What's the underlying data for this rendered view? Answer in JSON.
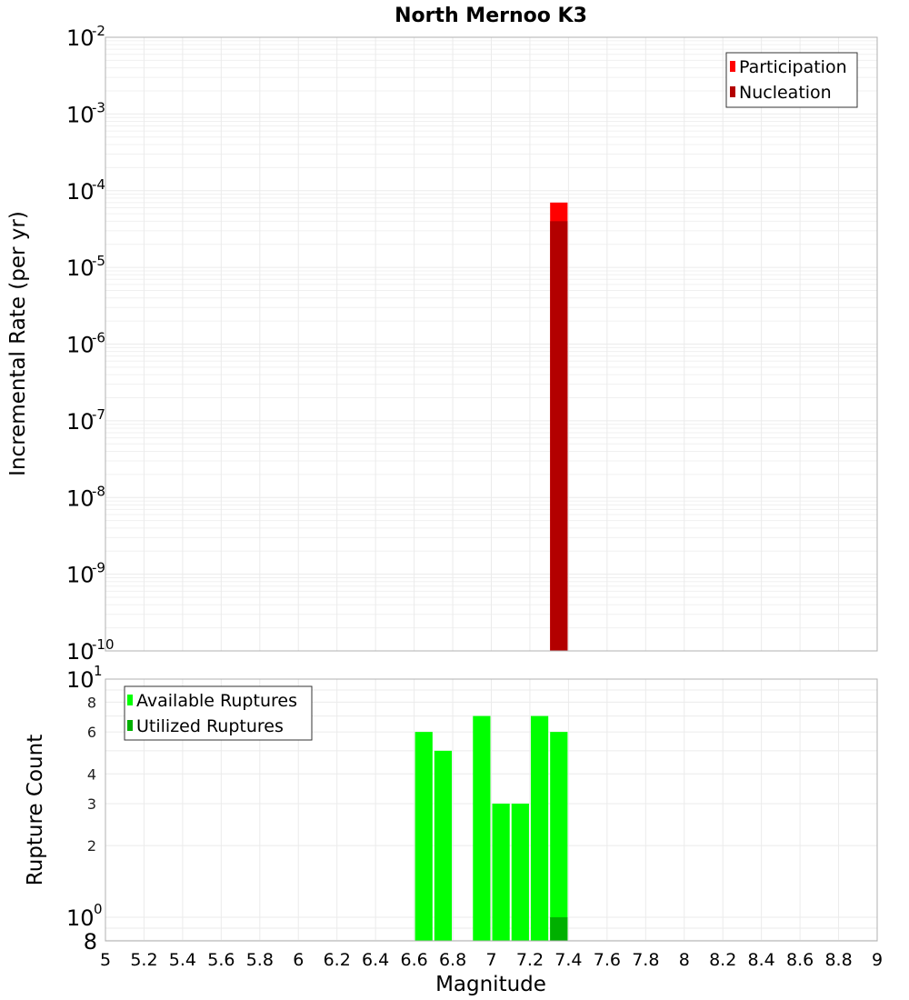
{
  "chart_data": [
    {
      "type": "bar",
      "title": "North Mernoo K3",
      "xlabel": "Magnitude",
      "ylabel": "Incremental Rate (per yr)",
      "yscale": "log",
      "xlim": [
        5,
        9
      ],
      "ylim": [
        1e-10,
        0.01
      ],
      "grid": true,
      "legend_position": "top-right",
      "bar_width": 0.1,
      "y_ticks": [
        {
          "base": "10",
          "exp": "-2"
        },
        {
          "base": "10",
          "exp": "-3"
        },
        {
          "base": "10",
          "exp": "-4"
        },
        {
          "base": "10",
          "exp": "-5"
        },
        {
          "base": "10",
          "exp": "-6"
        },
        {
          "base": "10",
          "exp": "-7"
        },
        {
          "base": "10",
          "exp": "-8"
        },
        {
          "base": "10",
          "exp": "-9"
        },
        {
          "base": "10",
          "exp": "-10"
        }
      ],
      "series": [
        {
          "name": "Participation",
          "color": "#ff0000",
          "x": [
            7.35
          ],
          "values": [
            7e-05
          ]
        },
        {
          "name": "Nucleation",
          "color": "#b30000",
          "x": [
            7.35
          ],
          "values": [
            4e-05
          ]
        }
      ]
    },
    {
      "type": "bar",
      "title": "",
      "xlabel": "Magnitude",
      "ylabel": "Rupture Count",
      "yscale": "log",
      "xlim": [
        5,
        9
      ],
      "ylim": [
        0.8,
        10
      ],
      "grid": true,
      "legend_position": "top-left",
      "bar_width": 0.1,
      "y_ticks_major": [
        {
          "base": "10",
          "exp": "1"
        },
        {
          "base": "10",
          "exp": "0"
        }
      ],
      "y_ticks_minor": [
        "8",
        "6",
        "4",
        "3",
        "2"
      ],
      "y_tick_bottom": "8",
      "x_ticks": [
        "5",
        "5.2",
        "5.4",
        "5.6",
        "5.8",
        "6",
        "6.2",
        "6.4",
        "6.6",
        "6.8",
        "7",
        "7.2",
        "7.4",
        "7.6",
        "7.8",
        "8",
        "8.2",
        "8.4",
        "8.6",
        "8.8",
        "9"
      ],
      "series": [
        {
          "name": "Available Ruptures",
          "color": "#00ff00",
          "x": [
            6.65,
            6.75,
            6.95,
            7.05,
            7.15,
            7.25,
            7.35
          ],
          "values": [
            6,
            5,
            7,
            3,
            3,
            7,
            6
          ]
        },
        {
          "name": "Utilized Ruptures",
          "color": "#00b000",
          "x": [
            7.35
          ],
          "values": [
            1
          ]
        }
      ]
    }
  ]
}
